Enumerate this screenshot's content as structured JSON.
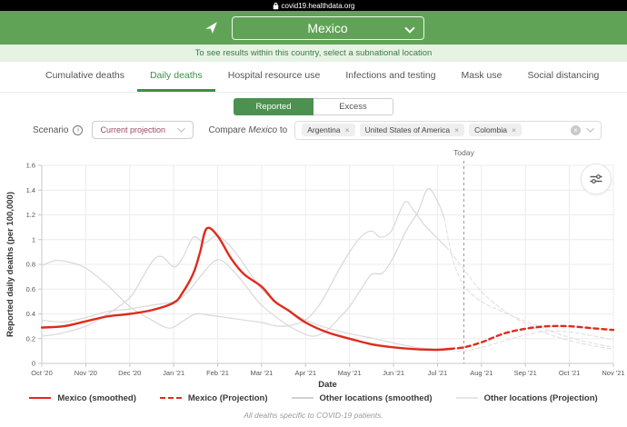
{
  "browser": {
    "url": "covid19.healthdata.org"
  },
  "header": {
    "location_selector": "Mexico"
  },
  "subnote": "To see results within this country, select a subnational location",
  "tabs": [
    {
      "label": "Cumulative deaths",
      "active": false
    },
    {
      "label": "Daily deaths",
      "active": true
    },
    {
      "label": "Hospital resource use",
      "active": false
    },
    {
      "label": "Infections and testing",
      "active": false
    },
    {
      "label": "Mask use",
      "active": false
    },
    {
      "label": "Social distancing",
      "active": false
    }
  ],
  "view_toggle": [
    {
      "label": "Reported",
      "active": true
    },
    {
      "label": "Excess",
      "active": false
    }
  ],
  "controls": {
    "scenario_label": "Scenario",
    "scenario_value": "Current projection",
    "compare_prefix": "Compare",
    "compare_location": "Mexico",
    "compare_suffix": "to",
    "compare_tags": [
      "Argentina",
      "United States of America",
      "Colombia"
    ]
  },
  "icons": {
    "info_glyph": "i",
    "tag_remove_glyph": "×",
    "clear_glyph": "×"
  },
  "colors": {
    "header_green": "#60a356",
    "accent_green": "#3e8e4a",
    "light_green_bar": "#e6f3e4",
    "mexico_red": "#e02a1d",
    "other_gray": "#d8d8d8",
    "projection_gray": "#e2e2e2",
    "scenario_text": "#9c4a5e"
  },
  "chart_data": {
    "type": "line",
    "ylabel": "Reported daily deaths (per 100,000)",
    "xlabel": "Date",
    "ylim": [
      0,
      1.6
    ],
    "yticks": [
      0,
      0.2,
      0.4,
      0.6,
      0.8,
      1,
      1.2,
      1.4,
      1.6
    ],
    "x_categories": [
      "Oct '20",
      "Nov '20",
      "Dec '20",
      "Jan '21",
      "Feb '21",
      "Mar '21",
      "Apr '21",
      "May '21",
      "Jun '21",
      "Jul '21",
      "Aug '21",
      "Sep '21",
      "Oct '21",
      "Nov '21"
    ],
    "x_unit": "months since Oct 1 2020",
    "today_label": "Today",
    "today_x": 9.6,
    "grid": true,
    "legend_position": "bottom",
    "series": [
      {
        "name": "Argentina (Projection)",
        "color": "#e2e2e2",
        "style": "dashed",
        "width": 1.2,
        "points": [
          [
            9.2,
            0.94
          ],
          [
            9.6,
            0.76
          ],
          [
            10,
            0.58
          ],
          [
            10.5,
            0.43
          ],
          [
            11,
            0.32
          ],
          [
            11.5,
            0.24
          ],
          [
            12,
            0.185
          ],
          [
            12.5,
            0.145
          ],
          [
            13,
            0.115
          ]
        ]
      },
      {
        "name": "United States of America (Projection)",
        "color": "#e2e2e2",
        "style": "dashed",
        "width": 1.2,
        "points": [
          [
            9.3,
            0.105
          ],
          [
            9.6,
            0.1
          ],
          [
            10,
            0.13
          ],
          [
            10.5,
            0.18
          ],
          [
            11,
            0.23
          ],
          [
            11.5,
            0.26
          ],
          [
            12,
            0.255
          ],
          [
            12.5,
            0.225
          ],
          [
            13,
            0.19
          ]
        ]
      },
      {
        "name": "Colombia (Projection)",
        "color": "#e2e2e2",
        "style": "dashed",
        "width": 1.2,
        "points": [
          [
            9.15,
            1.18
          ],
          [
            9.35,
            0.84
          ],
          [
            9.6,
            0.63
          ],
          [
            10,
            0.5
          ],
          [
            10.5,
            0.415
          ],
          [
            11,
            0.34
          ],
          [
            11.5,
            0.27
          ],
          [
            12,
            0.21
          ],
          [
            12.5,
            0.165
          ],
          [
            13,
            0.13
          ]
        ]
      },
      {
        "name": "Argentina (smoothed)",
        "color": "#d8d8d8",
        "style": "solid",
        "width": 1.2,
        "points": [
          [
            0,
            0.79
          ],
          [
            0.3,
            0.83
          ],
          [
            0.6,
            0.82
          ],
          [
            1,
            0.77
          ],
          [
            1.5,
            0.63
          ],
          [
            2,
            0.46
          ],
          [
            2.5,
            0.35
          ],
          [
            2.9,
            0.285
          ],
          [
            3.2,
            0.34
          ],
          [
            3.5,
            0.4
          ],
          [
            3.8,
            0.39
          ],
          [
            4.2,
            0.37
          ],
          [
            4.6,
            0.35
          ],
          [
            5,
            0.33
          ],
          [
            5.4,
            0.3
          ],
          [
            5.8,
            0.32
          ],
          [
            6.1,
            0.38
          ],
          [
            6.4,
            0.52
          ],
          [
            6.7,
            0.72
          ],
          [
            7,
            0.9
          ],
          [
            7.25,
            1.02
          ],
          [
            7.5,
            1.07
          ],
          [
            7.7,
            1.02
          ],
          [
            7.95,
            1.07
          ],
          [
            8.25,
            1.3
          ],
          [
            8.45,
            1.24
          ],
          [
            8.7,
            1.12
          ],
          [
            9,
            1.01
          ],
          [
            9.2,
            0.94
          ]
        ]
      },
      {
        "name": "United States of America (smoothed)",
        "color": "#d8d8d8",
        "style": "solid",
        "width": 1.2,
        "points": [
          [
            0,
            0.22
          ],
          [
            0.4,
            0.24
          ],
          [
            1,
            0.3
          ],
          [
            1.5,
            0.4
          ],
          [
            2,
            0.53
          ],
          [
            2.3,
            0.7
          ],
          [
            2.55,
            0.84
          ],
          [
            2.75,
            0.86
          ],
          [
            3,
            0.78
          ],
          [
            3.2,
            0.85
          ],
          [
            3.45,
            1.02
          ],
          [
            3.7,
            0.97
          ],
          [
            3.95,
            1.03
          ],
          [
            4.2,
            0.98
          ],
          [
            4.5,
            0.85
          ],
          [
            5,
            0.6
          ],
          [
            5.5,
            0.45
          ],
          [
            6,
            0.35
          ],
          [
            6.5,
            0.285
          ],
          [
            7,
            0.24
          ],
          [
            7.5,
            0.205
          ],
          [
            8,
            0.165
          ],
          [
            8.5,
            0.13
          ],
          [
            9,
            0.115
          ],
          [
            9.3,
            0.105
          ]
        ]
      },
      {
        "name": "Colombia (smoothed)",
        "color": "#d8d8d8",
        "style": "solid",
        "width": 1.2,
        "points": [
          [
            0,
            0.35
          ],
          [
            0.5,
            0.335
          ],
          [
            1,
            0.37
          ],
          [
            1.5,
            0.42
          ],
          [
            2,
            0.44
          ],
          [
            2.5,
            0.47
          ],
          [
            3,
            0.5
          ],
          [
            3.3,
            0.57
          ],
          [
            3.6,
            0.7
          ],
          [
            3.9,
            0.82
          ],
          [
            4.1,
            0.83
          ],
          [
            4.4,
            0.73
          ],
          [
            4.7,
            0.6
          ],
          [
            5,
            0.47
          ],
          [
            5.5,
            0.33
          ],
          [
            5.9,
            0.25
          ],
          [
            6.2,
            0.22
          ],
          [
            6.5,
            0.27
          ],
          [
            6.8,
            0.38
          ],
          [
            7,
            0.46
          ],
          [
            7.3,
            0.62
          ],
          [
            7.5,
            0.72
          ],
          [
            7.75,
            0.73
          ],
          [
            8,
            0.86
          ],
          [
            8.3,
            1.08
          ],
          [
            8.55,
            1.22
          ],
          [
            8.78,
            1.41
          ],
          [
            9,
            1.31
          ],
          [
            9.15,
            1.18
          ]
        ]
      },
      {
        "name": "Mexico (Projection)",
        "color": "#e02a1d",
        "style": "dashed",
        "width": 2.4,
        "points": [
          [
            9.28,
            0.118
          ],
          [
            9.6,
            0.13
          ],
          [
            10,
            0.17
          ],
          [
            10.5,
            0.24
          ],
          [
            11,
            0.28
          ],
          [
            11.5,
            0.3
          ],
          [
            12,
            0.3
          ],
          [
            12.5,
            0.285
          ],
          [
            13,
            0.27
          ]
        ]
      },
      {
        "name": "Mexico (smoothed)",
        "color": "#e02a1d",
        "style": "solid",
        "width": 2.4,
        "points": [
          [
            0,
            0.29
          ],
          [
            0.5,
            0.3
          ],
          [
            1,
            0.34
          ],
          [
            1.5,
            0.38
          ],
          [
            2,
            0.4
          ],
          [
            2.5,
            0.43
          ],
          [
            3,
            0.49
          ],
          [
            3.2,
            0.57
          ],
          [
            3.45,
            0.73
          ],
          [
            3.6,
            0.9
          ],
          [
            3.75,
            1.09
          ],
          [
            4,
            1.03
          ],
          [
            4.3,
            0.85
          ],
          [
            4.6,
            0.72
          ],
          [
            5,
            0.62
          ],
          [
            5.3,
            0.5
          ],
          [
            5.6,
            0.43
          ],
          [
            6,
            0.33
          ],
          [
            6.5,
            0.25
          ],
          [
            7,
            0.2
          ],
          [
            7.5,
            0.155
          ],
          [
            8,
            0.13
          ],
          [
            8.5,
            0.115
          ],
          [
            9,
            0.11
          ],
          [
            9.28,
            0.118
          ]
        ]
      }
    ],
    "legend": [
      {
        "label": "Mexico (smoothed)",
        "swatch": "red-solid"
      },
      {
        "label": "Mexico (Projection)",
        "swatch": "red-dashed"
      },
      {
        "label": "Other locations (smoothed)",
        "swatch": "gray-solid"
      },
      {
        "label": "Other locations (Projection)",
        "swatch": "gray-light"
      }
    ]
  },
  "footer": {
    "note": "All deaths specific to COVID-19 patients."
  }
}
